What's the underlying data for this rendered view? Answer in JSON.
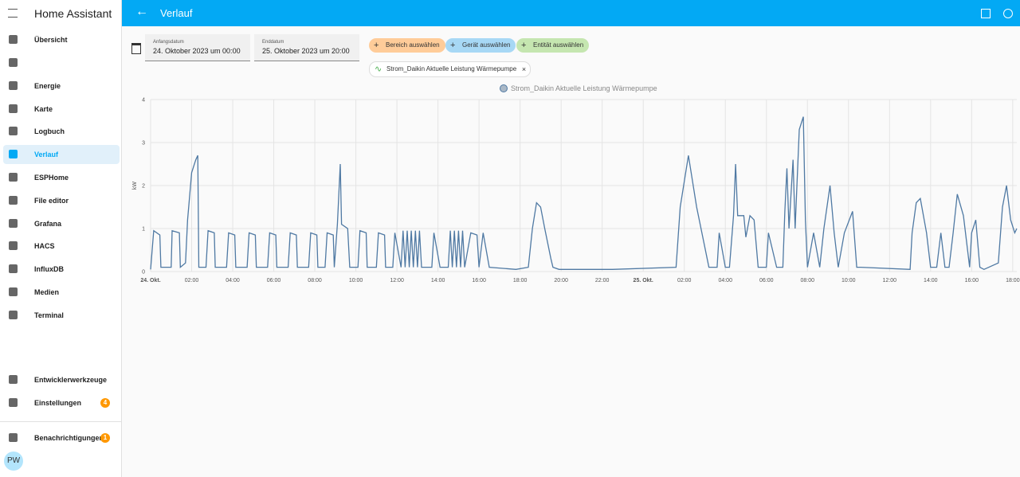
{
  "sidebar": {
    "title": "Home Assistant",
    "items": [
      "Übersicht",
      "Energie",
      "Karte",
      "Logbuch",
      "Verlauf",
      "ESPHome",
      "File editor",
      "Grafana",
      "HACS",
      "InfluxDB",
      "Medien",
      "Terminal"
    ],
    "bottom": [
      "Entwicklerwerkzeuge",
      "Einstellungen"
    ],
    "settings_badge": "4",
    "notifications": "Benachrichtigungen",
    "notifications_badge": "1",
    "user": "PW"
  },
  "header": {
    "title": "Verlauf"
  },
  "filters": {
    "start_label": "Anfangsdatum",
    "start_value": "24. Oktober 2023 um 00:00",
    "end_label": "Enddatum",
    "end_value": "25. Oktober 2023 um 20:00",
    "chips": [
      "Bereich auswählen",
      "Gerät auswählen",
      "Entität auswählen"
    ],
    "entity": "Strom_Daikin Aktuelle Leistung Wärmepumpe"
  },
  "chart_data": {
    "type": "line",
    "ylabel": "kW",
    "xlim": [
      0,
      42.2
    ],
    "ylim": [
      0,
      4
    ],
    "yticks": [
      0,
      1,
      2,
      3,
      4
    ],
    "grid": true,
    "xticks": [
      {
        "value": 0,
        "label": "24. Okt."
      },
      {
        "value": 2,
        "label": "02:00"
      },
      {
        "value": 4,
        "label": "04:00"
      },
      {
        "value": 6,
        "label": "06:00"
      },
      {
        "value": 8,
        "label": "08:00"
      },
      {
        "value": 10,
        "label": "10:00"
      },
      {
        "value": 12,
        "label": "12:00"
      },
      {
        "value": 14,
        "label": "14:00"
      },
      {
        "value": 16,
        "label": "16:00"
      },
      {
        "value": 18,
        "label": "18:00"
      },
      {
        "value": 20,
        "label": "20:00"
      },
      {
        "value": 22,
        "label": "22:00"
      },
      {
        "value": 24,
        "label": "25. Okt."
      },
      {
        "value": 26,
        "label": "02:00"
      },
      {
        "value": 28,
        "label": "04:00"
      },
      {
        "value": 30,
        "label": "06:00"
      },
      {
        "value": 32,
        "label": "08:00"
      },
      {
        "value": 34,
        "label": "10:00"
      },
      {
        "value": 36,
        "label": "12:00"
      },
      {
        "value": 38,
        "label": "14:00"
      },
      {
        "value": 40,
        "label": "16:00"
      },
      {
        "value": 42,
        "label": "18:00"
      }
    ],
    "series": [
      {
        "name": "Strom_Daikin Aktuelle Leistung Wärmepumpe",
        "color": "#4f79a3",
        "x": [
          0,
          0.15,
          0.45,
          0.5,
          1.0,
          1.05,
          1.4,
          1.45,
          1.7,
          1.8,
          2.0,
          2.2,
          2.3,
          2.35,
          2.7,
          2.8,
          3.1,
          3.15,
          3.7,
          3.8,
          4.1,
          4.15,
          4.7,
          4.8,
          5.1,
          5.15,
          5.7,
          5.8,
          6.1,
          6.15,
          6.7,
          6.8,
          7.1,
          7.15,
          7.7,
          7.8,
          8.1,
          8.15,
          8.5,
          8.6,
          8.9,
          8.95,
          9.1,
          9.24,
          9.3,
          9.6,
          9.7,
          10.1,
          10.2,
          10.5,
          10.55,
          11.0,
          11.1,
          11.4,
          11.45,
          11.8,
          11.9,
          12.2,
          12.3,
          12.4,
          12.5,
          12.6,
          12.7,
          12.8,
          12.9,
          13.0,
          13.1,
          13.2,
          13.7,
          13.8,
          14.1,
          14.5,
          14.6,
          14.7,
          14.8,
          14.9,
          15.0,
          15.1,
          15.2,
          15.3,
          15.6,
          15.9,
          16.0,
          16.2,
          16.5,
          17.8,
          18.4,
          18.6,
          18.8,
          19.0,
          19.2,
          19.5,
          19.6,
          19.9,
          22.5,
          25.6,
          25.8,
          26.2,
          26.6,
          26.9,
          27.2,
          27.6,
          27.7,
          28.0,
          28.2,
          28.4,
          28.5,
          28.6,
          28.9,
          29.0,
          29.2,
          29.4,
          29.6,
          30.0,
          30.1,
          30.5,
          30.8,
          30.9,
          31.0,
          31.1,
          31.3,
          31.4,
          31.6,
          31.8,
          31.9,
          32.0,
          32.3,
          32.6,
          32.8,
          33.1,
          33.3,
          33.5,
          33.8,
          34.2,
          34.4,
          34.6,
          37.0,
          37.1,
          37.3,
          37.5,
          37.8,
          38.0,
          38.3,
          38.5,
          38.7,
          38.9,
          39.1,
          39.3,
          39.6,
          39.9,
          40.0,
          40.2,
          40.4,
          40.6,
          41.3,
          41.5,
          41.7,
          41.9,
          42.1,
          42.2
        ],
        "values": [
          0.05,
          0.95,
          0.85,
          0.1,
          0.1,
          0.95,
          0.9,
          0.1,
          0.2,
          1.2,
          2.3,
          2.6,
          2.7,
          0.1,
          0.1,
          0.95,
          0.9,
          0.1,
          0.1,
          0.9,
          0.85,
          0.1,
          0.1,
          0.9,
          0.85,
          0.1,
          0.1,
          0.9,
          0.85,
          0.1,
          0.1,
          0.9,
          0.85,
          0.1,
          0.1,
          0.9,
          0.85,
          0.1,
          0.1,
          0.9,
          0.85,
          0.1,
          1.1,
          2.5,
          1.1,
          1.0,
          0.1,
          0.1,
          0.95,
          0.9,
          0.1,
          0.1,
          0.9,
          0.85,
          0.1,
          0.1,
          0.9,
          0.1,
          0.95,
          0.1,
          0.95,
          0.1,
          0.95,
          0.1,
          0.95,
          0.1,
          0.95,
          0.1,
          0.1,
          0.9,
          0.1,
          0.1,
          0.95,
          0.1,
          0.95,
          0.1,
          0.95,
          0.1,
          0.95,
          0.1,
          0.9,
          0.85,
          0.1,
          0.9,
          0.1,
          0.05,
          0.1,
          1.0,
          1.6,
          1.5,
          1.0,
          0.3,
          0.1,
          0.05,
          0.05,
          0.1,
          1.5,
          2.7,
          1.5,
          0.8,
          0.1,
          0.1,
          0.9,
          0.1,
          0.1,
          1.3,
          2.5,
          1.3,
          1.3,
          0.8,
          1.3,
          1.2,
          0.1,
          0.1,
          0.9,
          0.1,
          0.1,
          1.4,
          2.4,
          1.0,
          2.6,
          1.0,
          3.3,
          3.6,
          1.2,
          0.1,
          0.9,
          0.1,
          1.0,
          2.0,
          0.9,
          0.1,
          0.9,
          1.4,
          0.1,
          0.1,
          0.05,
          0.9,
          1.6,
          1.7,
          0.9,
          0.1,
          0.1,
          0.9,
          0.1,
          0.1,
          0.9,
          1.8,
          1.3,
          0.1,
          0.9,
          1.2,
          0.1,
          0.05,
          0.2,
          1.5,
          2.0,
          1.2,
          0.9,
          1.0
        ]
      }
    ]
  }
}
